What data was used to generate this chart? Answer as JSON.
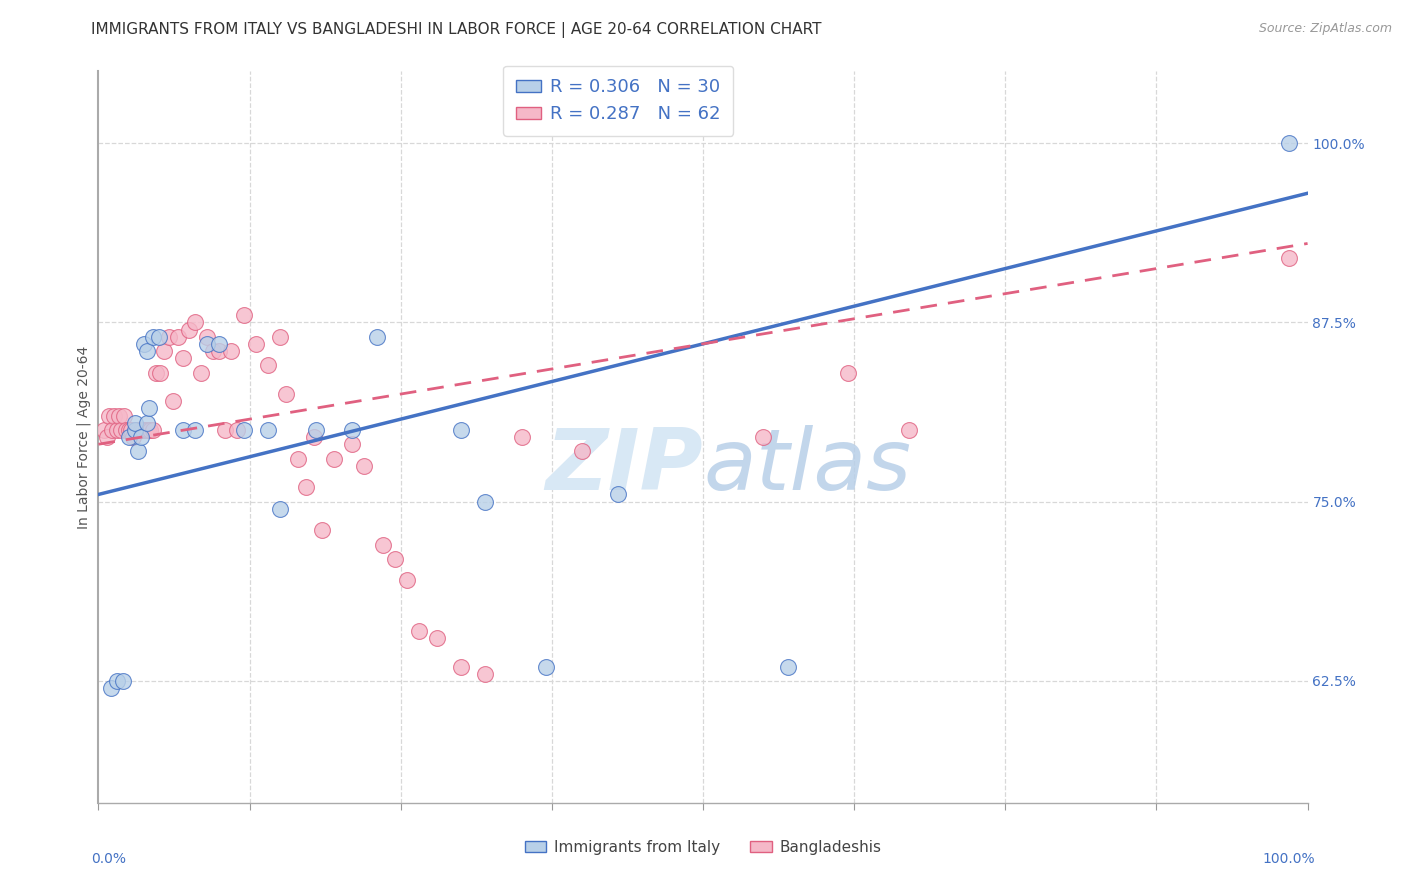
{
  "title": "IMMIGRANTS FROM ITALY VS BANGLADESHI IN LABOR FORCE | AGE 20-64 CORRELATION CHART",
  "source": "Source: ZipAtlas.com",
  "ylabel": "In Labor Force | Age 20-64",
  "yticks": [
    0.625,
    0.75,
    0.875,
    1.0
  ],
  "ytick_labels": [
    "62.5%",
    "75.0%",
    "87.5%",
    "100.0%"
  ],
  "xmin": 0.0,
  "xmax": 1.0,
  "ymin": 0.54,
  "ymax": 1.05,
  "italy_R": 0.306,
  "italy_N": 30,
  "bangladesh_R": 0.287,
  "bangladesh_N": 62,
  "italy_fill_color": "#b8d0e8",
  "italy_edge_color": "#4472c4",
  "italy_line_color": "#4472c4",
  "bangladesh_fill_color": "#f5b8c8",
  "bangladesh_edge_color": "#e06080",
  "bangladesh_line_color": "#e06080",
  "italy_scatter_x": [
    0.01,
    0.015,
    0.02,
    0.025,
    0.03,
    0.03,
    0.033,
    0.035,
    0.038,
    0.04,
    0.04,
    0.042,
    0.045,
    0.05,
    0.07,
    0.08,
    0.09,
    0.1,
    0.12,
    0.14,
    0.15,
    0.18,
    0.21,
    0.23,
    0.3,
    0.32,
    0.37,
    0.43,
    0.57,
    0.985
  ],
  "italy_scatter_y": [
    0.62,
    0.625,
    0.625,
    0.795,
    0.8,
    0.805,
    0.785,
    0.795,
    0.86,
    0.855,
    0.805,
    0.815,
    0.865,
    0.865,
    0.8,
    0.8,
    0.86,
    0.86,
    0.8,
    0.8,
    0.745,
    0.8,
    0.8,
    0.865,
    0.8,
    0.75,
    0.635,
    0.755,
    0.635,
    1.0
  ],
  "bangladesh_scatter_x": [
    0.005,
    0.007,
    0.009,
    0.011,
    0.013,
    0.015,
    0.017,
    0.019,
    0.021,
    0.023,
    0.025,
    0.027,
    0.029,
    0.031,
    0.033,
    0.035,
    0.037,
    0.039,
    0.041,
    0.043,
    0.045,
    0.048,
    0.051,
    0.054,
    0.058,
    0.062,
    0.066,
    0.07,
    0.075,
    0.08,
    0.085,
    0.09,
    0.095,
    0.1,
    0.105,
    0.11,
    0.115,
    0.12,
    0.13,
    0.14,
    0.15,
    0.155,
    0.165,
    0.172,
    0.178,
    0.185,
    0.195,
    0.21,
    0.22,
    0.235,
    0.245,
    0.255,
    0.265,
    0.28,
    0.3,
    0.32,
    0.35,
    0.4,
    0.55,
    0.62,
    0.67,
    0.985
  ],
  "bangladesh_scatter_y": [
    0.8,
    0.795,
    0.81,
    0.8,
    0.81,
    0.8,
    0.81,
    0.8,
    0.81,
    0.8,
    0.8,
    0.8,
    0.795,
    0.8,
    0.8,
    0.8,
    0.8,
    0.8,
    0.8,
    0.8,
    0.8,
    0.84,
    0.84,
    0.855,
    0.865,
    0.82,
    0.865,
    0.85,
    0.87,
    0.875,
    0.84,
    0.865,
    0.855,
    0.855,
    0.8,
    0.855,
    0.8,
    0.88,
    0.86,
    0.845,
    0.865,
    0.825,
    0.78,
    0.76,
    0.795,
    0.73,
    0.78,
    0.79,
    0.775,
    0.72,
    0.71,
    0.695,
    0.66,
    0.655,
    0.635,
    0.63,
    0.795,
    0.785,
    0.795,
    0.84,
    0.8,
    0.92
  ],
  "italy_trendline": [
    0.755,
    0.965
  ],
  "bangladesh_trendline": [
    0.79,
    0.93
  ],
  "legend_italy_label": "Immigrants from Italy",
  "legend_bangladesh_label": "Bangladeshis",
  "title_fontsize": 11,
  "axis_label_fontsize": 10,
  "tick_fontsize": 10,
  "source_fontsize": 9,
  "legend_fontsize": 13,
  "watermark_color": "#d8e8f5",
  "grid_color": "#d8d8d8"
}
